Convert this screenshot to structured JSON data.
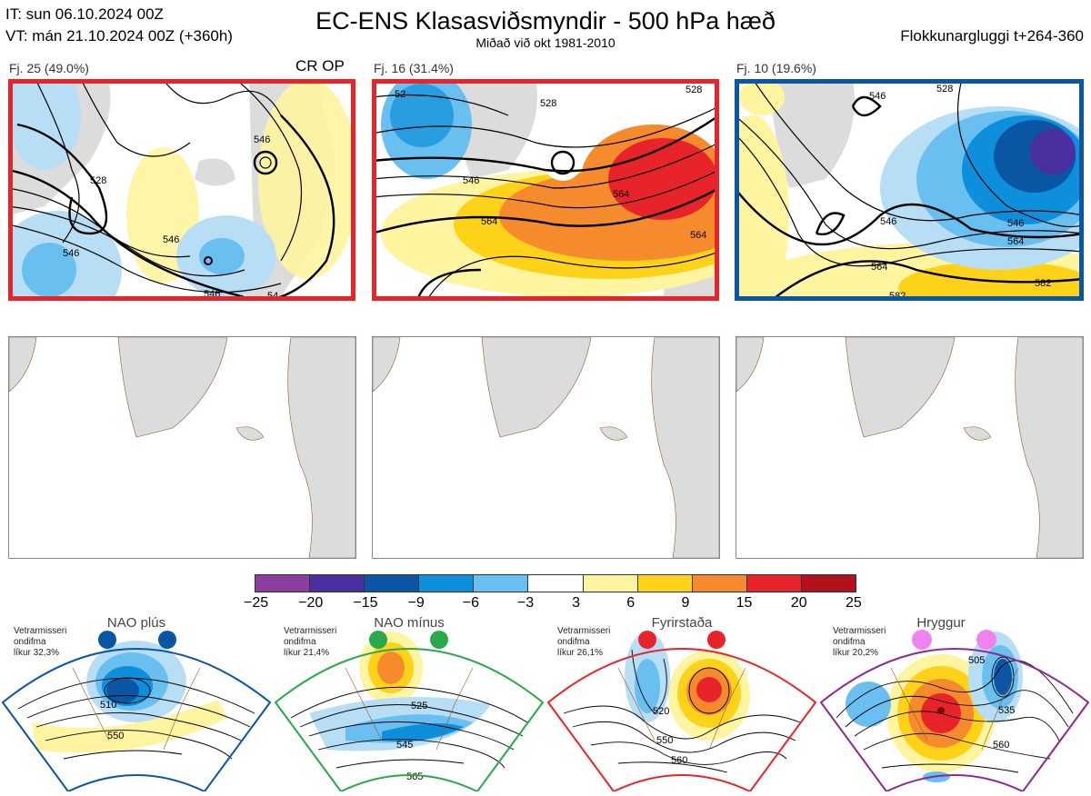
{
  "header": {
    "it_line": "IT: sun 06.10.2024 00Z",
    "vt_line": "VT: mán 21.10.2024 00Z  (+360h)",
    "title": "EC-ENS Klasasviðsmyndir - 500 hPa hæð",
    "subtitle": "Miðað við okt 1981-2010",
    "window": "Flokkunargluggi t+264-360"
  },
  "clusters": [
    {
      "label": "Fj. 25 (49.0%)",
      "tag": "CR OP",
      "frame_color": "#e8242b",
      "contours": [
        "546",
        "528",
        "546",
        "546",
        "546",
        "54"
      ]
    },
    {
      "label": "Fj. 16 (31.4%)",
      "tag": "",
      "frame_color": "#e8242b",
      "contours": [
        "528",
        "528",
        "546",
        "564",
        "564",
        "564",
        "52"
      ]
    },
    {
      "label": "Fj. 10 (19.6%)",
      "tag": "",
      "frame_color": "#0b56a4",
      "contours": [
        "546",
        "546",
        "546",
        "564",
        "564",
        "582",
        "582",
        "528"
      ]
    }
  ],
  "colorbar": {
    "ticks": [
      "−25",
      "−20",
      "−15",
      "−9",
      "−6",
      "−3",
      "3",
      "6",
      "9",
      "15",
      "20",
      "25"
    ],
    "colors": [
      "#8b3e9b",
      "#4a2fa0",
      "#0b56a4",
      "#0e8fdc",
      "#69bff0",
      "#b7def5",
      "#ffffff",
      "#fff4a0",
      "#ffd21a",
      "#f58b2d",
      "#e8242b",
      "#b2121c"
    ]
  },
  "regimes": [
    {
      "title": "NAO plús",
      "note": [
        "Vetrarmisseri",
        "ondifma",
        "líkur 32,3%"
      ],
      "border": "#0b56a4",
      "dot": "#0b56a4",
      "contours": [
        "510",
        "550"
      ]
    },
    {
      "title": "NAO mínus",
      "note": [
        "Vetrarmisseri",
        "ondifma",
        "líkur 21,4%"
      ],
      "border": "#2aa84a",
      "dot": "#2aa84a",
      "contours": [
        "525",
        "545",
        "565"
      ]
    },
    {
      "title": "Fyrirstaða",
      "note": [
        "Vetrarmisseri",
        "ondifma",
        "líkur 26,1%"
      ],
      "border": "#e8242b",
      "dot": "#e8242b",
      "contours": [
        "520",
        "550",
        "560"
      ]
    },
    {
      "title": "Hryggur",
      "note": [
        "Vetrarmisseri",
        "ondifma",
        "líkur 20,2%"
      ],
      "border": "#8b2b8f",
      "dot": "#ee82ee",
      "contours": [
        "505",
        "535",
        "560"
      ]
    }
  ]
}
